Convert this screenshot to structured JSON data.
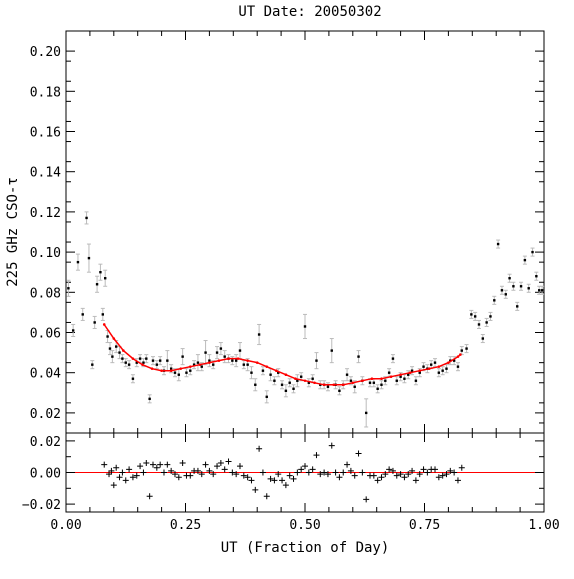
{
  "chart_data": [
    {
      "type": "scatter",
      "panel": "main",
      "title": "UT Date: 20050302",
      "xlabel": "UT (Fraction of Day)",
      "ylabel": "225 GHz CSO-τ",
      "xlim": [
        0.0,
        1.0
      ],
      "ylim": [
        0.01,
        0.21
      ],
      "xticks": [
        "0.00",
        "0.25",
        "0.50",
        "0.75",
        "1.00"
      ],
      "yticks": [
        "0.02",
        "0.04",
        "0.06",
        "0.08",
        "0.10",
        "0.12",
        "0.14",
        "0.16",
        "0.18",
        "0.20"
      ],
      "ytick_values": [
        0.02,
        0.04,
        0.06,
        0.08,
        0.1,
        0.12,
        0.14,
        0.16,
        0.18,
        0.2
      ],
      "xtick_values": [
        0.0,
        0.25,
        0.5,
        0.75,
        1.0
      ],
      "colors": {
        "points": "#000000",
        "errorbars": "#bbbbbb",
        "fit": "#ff0000"
      },
      "points": [
        [
          0.005,
          0.082,
          0.004
        ],
        [
          0.015,
          0.061,
          0.003
        ],
        [
          0.025,
          0.095,
          0.004
        ],
        [
          0.035,
          0.069,
          0.003
        ],
        [
          0.043,
          0.117,
          0.003
        ],
        [
          0.048,
          0.097,
          0.007
        ],
        [
          0.055,
          0.044,
          0.002
        ],
        [
          0.06,
          0.065,
          0.003
        ],
        [
          0.065,
          0.084,
          0.004
        ],
        [
          0.072,
          0.09,
          0.004
        ],
        [
          0.077,
          0.069,
          0.003
        ],
        [
          0.082,
          0.087,
          0.004
        ],
        [
          0.087,
          0.058,
          0.003
        ],
        [
          0.092,
          0.052,
          0.003
        ],
        [
          0.097,
          0.048,
          0.003
        ],
        [
          0.105,
          0.053,
          0.003
        ],
        [
          0.112,
          0.05,
          0.003
        ],
        [
          0.118,
          0.047,
          0.002
        ],
        [
          0.125,
          0.045,
          0.002
        ],
        [
          0.132,
          0.044,
          0.002
        ],
        [
          0.14,
          0.037,
          0.002
        ],
        [
          0.148,
          0.045,
          0.002
        ],
        [
          0.155,
          0.047,
          0.002
        ],
        [
          0.162,
          0.045,
          0.002
        ],
        [
          0.168,
          0.047,
          0.002
        ],
        [
          0.175,
          0.027,
          0.002
        ],
        [
          0.182,
          0.046,
          0.002
        ],
        [
          0.19,
          0.044,
          0.002
        ],
        [
          0.197,
          0.046,
          0.002
        ],
        [
          0.205,
          0.041,
          0.002
        ],
        [
          0.212,
          0.046,
          0.005
        ],
        [
          0.22,
          0.042,
          0.002
        ],
        [
          0.228,
          0.04,
          0.002
        ],
        [
          0.236,
          0.039,
          0.003
        ],
        [
          0.244,
          0.048,
          0.004
        ],
        [
          0.252,
          0.04,
          0.002
        ],
        [
          0.26,
          0.041,
          0.002
        ],
        [
          0.268,
          0.044,
          0.002
        ],
        [
          0.276,
          0.045,
          0.004
        ],
        [
          0.284,
          0.043,
          0.002
        ],
        [
          0.292,
          0.05,
          0.006
        ],
        [
          0.3,
          0.046,
          0.003
        ],
        [
          0.308,
          0.044,
          0.002
        ],
        [
          0.316,
          0.05,
          0.003
        ],
        [
          0.324,
          0.052,
          0.003
        ],
        [
          0.332,
          0.048,
          0.003
        ],
        [
          0.34,
          0.047,
          0.002
        ],
        [
          0.348,
          0.046,
          0.002
        ],
        [
          0.356,
          0.046,
          0.003
        ],
        [
          0.364,
          0.051,
          0.004
        ],
        [
          0.372,
          0.044,
          0.002
        ],
        [
          0.38,
          0.044,
          0.003
        ],
        [
          0.388,
          0.04,
          0.003
        ],
        [
          0.396,
          0.034,
          0.003
        ],
        [
          0.404,
          0.059,
          0.005
        ],
        [
          0.412,
          0.041,
          0.002
        ],
        [
          0.42,
          0.028,
          0.003
        ],
        [
          0.428,
          0.039,
          0.003
        ],
        [
          0.436,
          0.036,
          0.002
        ],
        [
          0.444,
          0.04,
          0.002
        ],
        [
          0.452,
          0.034,
          0.002
        ],
        [
          0.46,
          0.031,
          0.003
        ],
        [
          0.468,
          0.035,
          0.002
        ],
        [
          0.476,
          0.032,
          0.002
        ],
        [
          0.484,
          0.036,
          0.003
        ],
        [
          0.492,
          0.038,
          0.002
        ],
        [
          0.5,
          0.063,
          0.006
        ],
        [
          0.508,
          0.035,
          0.002
        ],
        [
          0.516,
          0.037,
          0.002
        ],
        [
          0.524,
          0.046,
          0.004
        ],
        [
          0.532,
          0.034,
          0.002
        ],
        [
          0.54,
          0.034,
          0.002
        ],
        [
          0.548,
          0.033,
          0.002
        ],
        [
          0.556,
          0.051,
          0.006
        ],
        [
          0.564,
          0.034,
          0.002
        ],
        [
          0.572,
          0.031,
          0.002
        ],
        [
          0.58,
          0.034,
          0.002
        ],
        [
          0.588,
          0.039,
          0.003
        ],
        [
          0.596,
          0.036,
          0.002
        ],
        [
          0.604,
          0.033,
          0.003
        ],
        [
          0.612,
          0.048,
          0.003
        ],
        [
          0.62,
          0.036,
          0.002
        ],
        [
          0.628,
          0.02,
          0.007
        ],
        [
          0.636,
          0.035,
          0.002
        ],
        [
          0.644,
          0.035,
          0.002
        ],
        [
          0.652,
          0.032,
          0.002
        ],
        [
          0.66,
          0.034,
          0.002
        ],
        [
          0.668,
          0.036,
          0.002
        ],
        [
          0.676,
          0.04,
          0.002
        ],
        [
          0.684,
          0.047,
          0.002
        ],
        [
          0.692,
          0.036,
          0.002
        ],
        [
          0.7,
          0.038,
          0.002
        ],
        [
          0.708,
          0.037,
          0.002
        ],
        [
          0.716,
          0.039,
          0.002
        ],
        [
          0.724,
          0.041,
          0.002
        ],
        [
          0.732,
          0.036,
          0.002
        ],
        [
          0.74,
          0.04,
          0.002
        ],
        [
          0.748,
          0.043,
          0.002
        ],
        [
          0.756,
          0.042,
          0.002
        ],
        [
          0.764,
          0.044,
          0.002
        ],
        [
          0.772,
          0.045,
          0.002
        ],
        [
          0.78,
          0.04,
          0.002
        ],
        [
          0.788,
          0.041,
          0.002
        ],
        [
          0.796,
          0.042,
          0.002
        ],
        [
          0.804,
          0.046,
          0.002
        ],
        [
          0.812,
          0.046,
          0.002
        ],
        [
          0.82,
          0.043,
          0.002
        ],
        [
          0.828,
          0.051,
          0.002
        ],
        [
          0.838,
          0.052,
          0.002
        ],
        [
          0.848,
          0.069,
          0.002
        ],
        [
          0.856,
          0.068,
          0.002
        ],
        [
          0.864,
          0.064,
          0.002
        ],
        [
          0.872,
          0.057,
          0.002
        ],
        [
          0.88,
          0.065,
          0.002
        ],
        [
          0.888,
          0.068,
          0.002
        ],
        [
          0.896,
          0.076,
          0.002
        ],
        [
          0.904,
          0.104,
          0.002
        ],
        [
          0.912,
          0.081,
          0.002
        ],
        [
          0.92,
          0.079,
          0.002
        ],
        [
          0.928,
          0.087,
          0.002
        ],
        [
          0.936,
          0.083,
          0.002
        ],
        [
          0.944,
          0.073,
          0.002
        ],
        [
          0.952,
          0.083,
          0.002
        ],
        [
          0.96,
          0.096,
          0.002
        ],
        [
          0.968,
          0.082,
          0.002
        ],
        [
          0.976,
          0.1,
          0.002
        ],
        [
          0.984,
          0.088,
          0.002
        ],
        [
          0.99,
          0.081,
          0.002
        ],
        [
          0.996,
          0.081,
          0.002
        ]
      ],
      "fit_line": [
        [
          0.08,
          0.064
        ],
        [
          0.1,
          0.057
        ],
        [
          0.12,
          0.051
        ],
        [
          0.14,
          0.047
        ],
        [
          0.16,
          0.044
        ],
        [
          0.18,
          0.042
        ],
        [
          0.2,
          0.041
        ],
        [
          0.22,
          0.041
        ],
        [
          0.24,
          0.042
        ],
        [
          0.26,
          0.043
        ],
        [
          0.28,
          0.044
        ],
        [
          0.3,
          0.045
        ],
        [
          0.32,
          0.046
        ],
        [
          0.34,
          0.047
        ],
        [
          0.36,
          0.047
        ],
        [
          0.38,
          0.046
        ],
        [
          0.4,
          0.045
        ],
        [
          0.42,
          0.043
        ],
        [
          0.44,
          0.041
        ],
        [
          0.46,
          0.039
        ],
        [
          0.48,
          0.037
        ],
        [
          0.5,
          0.036
        ],
        [
          0.52,
          0.035
        ],
        [
          0.54,
          0.034
        ],
        [
          0.56,
          0.034
        ],
        [
          0.58,
          0.034
        ],
        [
          0.6,
          0.035
        ],
        [
          0.62,
          0.036
        ],
        [
          0.64,
          0.037
        ],
        [
          0.66,
          0.037
        ],
        [
          0.68,
          0.038
        ],
        [
          0.7,
          0.039
        ],
        [
          0.72,
          0.04
        ],
        [
          0.74,
          0.041
        ],
        [
          0.76,
          0.042
        ],
        [
          0.78,
          0.043
        ],
        [
          0.8,
          0.045
        ],
        [
          0.82,
          0.048
        ],
        [
          0.825,
          0.049
        ]
      ]
    },
    {
      "type": "scatter",
      "panel": "residuals",
      "xlim": [
        0.0,
        1.0
      ],
      "ylim": [
        -0.025,
        0.025
      ],
      "yticks": [
        "0.02",
        "0.00",
        "−0.02"
      ],
      "ytick_values": [
        0.02,
        0.0,
        -0.02
      ],
      "zero_line_color": "#ff0000",
      "points": [
        [
          0.08,
          0.005
        ],
        [
          0.09,
          -0.001
        ],
        [
          0.095,
          0.001
        ],
        [
          0.1,
          -0.008
        ],
        [
          0.105,
          0.003
        ],
        [
          0.112,
          -0.003
        ],
        [
          0.118,
          0.0
        ],
        [
          0.125,
          -0.005
        ],
        [
          0.132,
          0.002
        ],
        [
          0.14,
          -0.003
        ],
        [
          0.148,
          -0.002
        ],
        [
          0.155,
          0.004
        ],
        [
          0.162,
          0.0
        ],
        [
          0.168,
          0.006
        ],
        [
          0.175,
          -0.015
        ],
        [
          0.182,
          0.005
        ],
        [
          0.19,
          0.003
        ],
        [
          0.197,
          0.005
        ],
        [
          0.205,
          0.0
        ],
        [
          0.212,
          0.005
        ],
        [
          0.22,
          0.001
        ],
        [
          0.228,
          -0.001
        ],
        [
          0.236,
          -0.003
        ],
        [
          0.244,
          0.006
        ],
        [
          0.252,
          -0.002
        ],
        [
          0.26,
          -0.002
        ],
        [
          0.268,
          0.001
        ],
        [
          0.276,
          0.001
        ],
        [
          0.284,
          -0.001
        ],
        [
          0.292,
          0.005
        ],
        [
          0.3,
          0.001
        ],
        [
          0.308,
          -0.001
        ],
        [
          0.316,
          0.004
        ],
        [
          0.324,
          0.006
        ],
        [
          0.332,
          0.002
        ],
        [
          0.34,
          0.007
        ],
        [
          0.348,
          0.0
        ],
        [
          0.356,
          -0.001
        ],
        [
          0.364,
          0.004
        ],
        [
          0.372,
          -0.002
        ],
        [
          0.38,
          -0.003
        ],
        [
          0.388,
          -0.005
        ],
        [
          0.396,
          -0.011
        ],
        [
          0.404,
          0.015
        ],
        [
          0.412,
          0.0
        ],
        [
          0.42,
          -0.015
        ],
        [
          0.428,
          -0.004
        ],
        [
          0.436,
          -0.005
        ],
        [
          0.444,
          -0.001
        ],
        [
          0.452,
          -0.005
        ],
        [
          0.46,
          -0.008
        ],
        [
          0.468,
          -0.002
        ],
        [
          0.476,
          -0.004
        ],
        [
          0.484,
          0.0
        ],
        [
          0.492,
          0.002
        ],
        [
          0.5,
          0.004
        ],
        [
          0.508,
          0.0
        ],
        [
          0.516,
          0.002
        ],
        [
          0.524,
          0.011
        ],
        [
          0.532,
          -0.001
        ],
        [
          0.54,
          0.0
        ],
        [
          0.548,
          -0.001
        ],
        [
          0.556,
          0.017
        ],
        [
          0.564,
          0.0
        ],
        [
          0.572,
          -0.003
        ],
        [
          0.58,
          0.0
        ],
        [
          0.588,
          0.005
        ],
        [
          0.596,
          0.001
        ],
        [
          0.604,
          -0.002
        ],
        [
          0.612,
          0.012
        ],
        [
          0.62,
          0.0
        ],
        [
          0.628,
          -0.017
        ],
        [
          0.636,
          -0.002
        ],
        [
          0.644,
          -0.002
        ],
        [
          0.652,
          -0.005
        ],
        [
          0.66,
          -0.003
        ],
        [
          0.668,
          -0.001
        ],
        [
          0.676,
          0.002
        ],
        [
          0.684,
          0.001
        ],
        [
          0.692,
          -0.002
        ],
        [
          0.7,
          -0.001
        ],
        [
          0.708,
          -0.003
        ],
        [
          0.716,
          -0.001
        ],
        [
          0.724,
          0.001
        ],
        [
          0.732,
          -0.005
        ],
        [
          0.74,
          -0.001
        ],
        [
          0.748,
          0.002
        ],
        [
          0.756,
          0.0
        ],
        [
          0.764,
          0.002
        ],
        [
          0.772,
          0.002
        ],
        [
          0.78,
          -0.003
        ],
        [
          0.788,
          -0.002
        ],
        [
          0.796,
          -0.001
        ],
        [
          0.804,
          0.001
        ],
        [
          0.812,
          0.0
        ],
        [
          0.82,
          -0.005
        ],
        [
          0.828,
          0.003
        ]
      ]
    }
  ]
}
